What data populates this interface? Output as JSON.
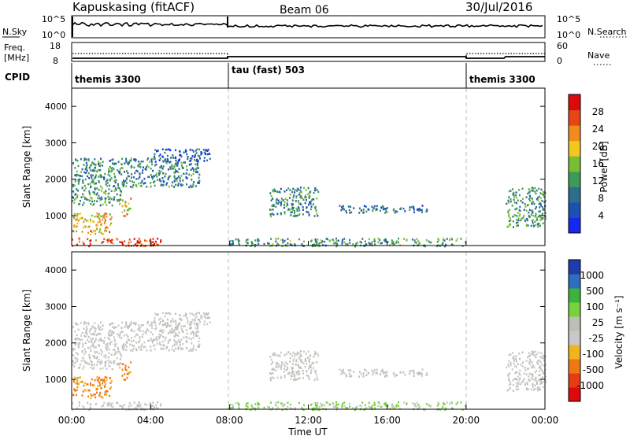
{
  "header": {
    "station": "Kapuskasing (fitACF)",
    "beam": "Beam 06",
    "date": "30/Jul/2016"
  },
  "panels": {
    "nsky": {
      "left_label": "N.Sky",
      "left_ticks": [
        "10^5",
        "10^0"
      ],
      "right_label": "N.Search",
      "right_ticks": [
        "10^5",
        "10^0"
      ]
    },
    "freq": {
      "left_label_1": "Freq.",
      "left_label_2": "[MHz]",
      "left_ticks": [
        "18",
        "8"
      ],
      "right_label": "Nave",
      "right_ticks": [
        "60",
        "0"
      ]
    },
    "cpid": {
      "label": "CPID",
      "segments": [
        "themis 3300",
        "tau (fast) 503",
        "themis 3300"
      ]
    }
  },
  "axes": {
    "ylabel": "Slant Range [km]",
    "yticks": [
      "1000",
      "2000",
      "3000",
      "4000"
    ],
    "xticks": [
      "00:00",
      "04:00",
      "08:00",
      "12:00",
      "16:00",
      "20:00",
      "00:00"
    ],
    "xlabel": "Time UT"
  },
  "colorbars": {
    "power": {
      "label": "Power [dB]",
      "ticks": [
        "4",
        "8",
        "12",
        "16",
        "20",
        "24",
        "28"
      ],
      "colors": [
        "#1428f0",
        "#1e50b4",
        "#2c6e8c",
        "#3c9a5a",
        "#78be32",
        "#f0c81e",
        "#f08c1e",
        "#e64614",
        "#dc0a0a"
      ]
    },
    "velocity": {
      "label": "Velocity [m s⁻¹]",
      "ticks": [
        "1000",
        "500",
        "100",
        "25",
        "-25",
        "-100",
        "-500",
        "-1000"
      ],
      "colors": [
        "#1e3caa",
        "#2d6ebe",
        "#3cb43c",
        "#78d23c",
        "#bebeb4",
        "#c8c8c8",
        "#f0b41e",
        "#f07814",
        "#e63c14",
        "#dc0a0a"
      ]
    }
  },
  "chart_data": {
    "type": "heatmap",
    "title": "Kapuskasing (fitACF) Beam 06 30/Jul/2016",
    "xlabel": "Time UT",
    "ylabel": "Slant Range [km]",
    "x_range_hours": [
      0,
      24
    ],
    "y_range_km": [
      180,
      4500
    ],
    "mode_changes_hours": [
      8.0,
      20.0
    ],
    "echo_regions": [
      {
        "t0": 0.0,
        "t1": 4.5,
        "r0": 180,
        "r1": 400,
        "power_db": 28,
        "velocity": "-25..25"
      },
      {
        "t0": 0.0,
        "t1": 2.0,
        "r0": 500,
        "r1": 1100,
        "power_db": 20,
        "velocity": "-500..-100"
      },
      {
        "t0": 2.5,
        "t1": 3.0,
        "r0": 1000,
        "r1": 1500,
        "power_db": 20,
        "velocity": "-500..-100"
      },
      {
        "t0": 0.0,
        "t1": 2.5,
        "r0": 1300,
        "r1": 1800,
        "power_db": 12,
        "velocity": "-25..25"
      },
      {
        "t0": 0.0,
        "t1": 6.5,
        "r0": 1800,
        "r1": 2600,
        "power_db": 10,
        "velocity": "-25..25"
      },
      {
        "t0": 4.0,
        "t1": 7.0,
        "r0": 2500,
        "r1": 2850,
        "power_db": 6,
        "velocity": "-25..25"
      },
      {
        "t0": 8.0,
        "t1": 20.0,
        "r0": 180,
        "r1": 400,
        "power_db": 12,
        "velocity": "25..100"
      },
      {
        "t0": 10.0,
        "t1": 12.5,
        "r0": 1000,
        "r1": 1800,
        "power_db": 10,
        "velocity": "-25..25"
      },
      {
        "t0": 13.5,
        "t1": 18.0,
        "r0": 1100,
        "r1": 1300,
        "power_db": 8,
        "velocity": "-25..25"
      },
      {
        "t0": 22.0,
        "t1": 24.0,
        "r0": 700,
        "r1": 1800,
        "power_db": 12,
        "velocity": "-25..25"
      }
    ]
  }
}
